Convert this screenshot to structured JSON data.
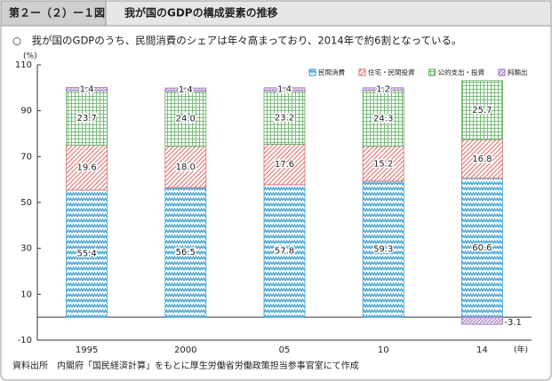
{
  "chart_data": {
    "type": "stacked_bar",
    "figure_label": "第２ー（２）ー１図",
    "title": "我が国のGDPの構成要素の推移",
    "subtitle": "○　我が国のGDPのうち、民間消費のシェアは年々高まっており、2014年で約6割となっている。",
    "y_unit": "(%)",
    "x_unit": "(年)",
    "source": "資料出所　内閣府「国民経済計算」をもとに厚生労働省労働政策担当参事官室にて作成",
    "categories": [
      "1995",
      "2000",
      "05",
      "10",
      "14"
    ],
    "ylim": [
      -10,
      110
    ],
    "yticks": [
      -10,
      10,
      30,
      50,
      70,
      90,
      110
    ],
    "grid": false,
    "legend": "top-right",
    "series": [
      {
        "name": "民間消費",
        "color": "#3a9fd8",
        "pattern": "zigzag",
        "values": [
          55.4,
          56.5,
          57.8,
          59.3,
          60.6
        ],
        "value_labels": [
          "55.4",
          "56.5",
          "57.8",
          "59.3",
          "60.6"
        ]
      },
      {
        "name": "住宅・民間投資",
        "color": "#e06a6a",
        "pattern": "hatch",
        "values": [
          19.6,
          18.0,
          17.6,
          15.2,
          16.8
        ],
        "value_labels": [
          "19.6",
          "18.0",
          "17.6",
          "15.2",
          "16.8"
        ]
      },
      {
        "name": "公的支出・投資",
        "color": "#5fae5f",
        "pattern": "grid",
        "values": [
          23.7,
          24.0,
          23.2,
          24.3,
          25.7
        ],
        "value_labels": [
          "23.7",
          "24.0",
          "23.2",
          "24.3",
          "25.7"
        ]
      },
      {
        "name": "純輸出",
        "color": "#9b6fb8",
        "pattern": "checker",
        "values": [
          1.4,
          1.4,
          1.4,
          1.2,
          -3.1
        ],
        "value_labels": [
          "1.4",
          "1.4",
          "1.4",
          "1.2",
          "-3.1"
        ]
      }
    ]
  }
}
